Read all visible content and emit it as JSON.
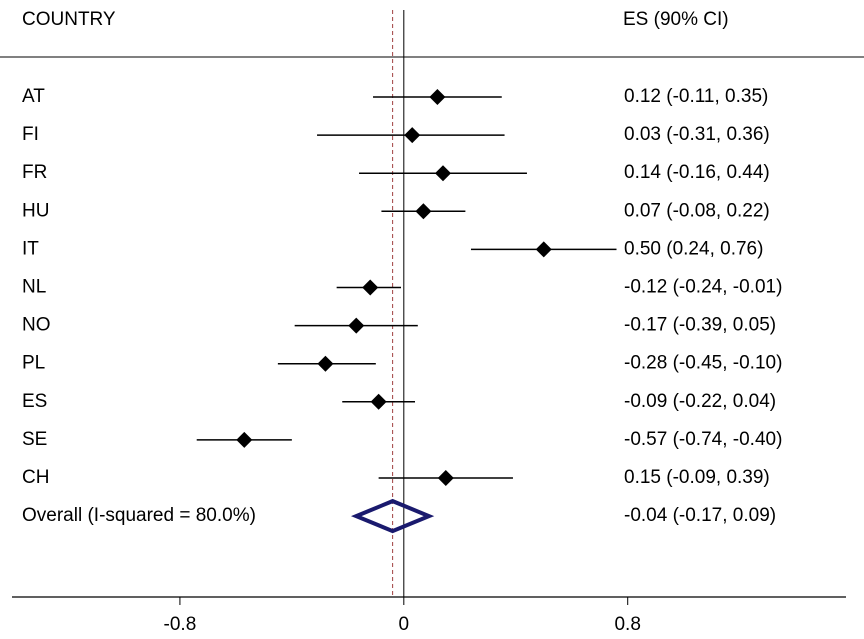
{
  "chart_data": {
    "type": "forest",
    "header_label": "COUNTRY",
    "header_stat": "ES (90% CI)",
    "categories": [
      "AT",
      "FI",
      "FR",
      "HU",
      "IT",
      "NL",
      "NO",
      "PL",
      "ES",
      "SE",
      "CH"
    ],
    "values": [
      0.12,
      0.03,
      0.14,
      0.07,
      0.5,
      -0.12,
      -0.17,
      -0.28,
      -0.09,
      -0.57,
      0.15
    ],
    "lower": [
      -0.11,
      -0.31,
      -0.16,
      -0.08,
      0.24,
      -0.24,
      -0.39,
      -0.45,
      -0.22,
      -0.74,
      -0.09
    ],
    "upper": [
      0.35,
      0.36,
      0.44,
      0.22,
      0.76,
      -0.01,
      0.05,
      -0.1,
      0.04,
      -0.4,
      0.39
    ],
    "value_labels": [
      "0.12 (-0.11, 0.35)",
      "0.03 (-0.31, 0.36)",
      "0.14 (-0.16, 0.44)",
      "0.07 (-0.08, 0.22)",
      "0.50 (0.24, 0.76)",
      "-0.12 (-0.24, -0.01)",
      "-0.17 (-0.39, 0.05)",
      "-0.28 (-0.45, -0.10)",
      "-0.09 (-0.22, 0.04)",
      "-0.57 (-0.74, -0.40)",
      "0.15 (-0.09, 0.39)"
    ],
    "color": "#000000",
    "overall": {
      "label": "Overall  (I-squared = 80.0%)",
      "value": -0.04,
      "lower": -0.17,
      "upper": 0.09,
      "value_label": "-0.04 (-0.17, 0.09)",
      "color": "#1a1a6e",
      "line_color": "#a04040"
    },
    "reference_line": 0,
    "xlim": [
      -1.4,
      1.58
    ],
    "xticks": [
      -0.8,
      0,
      0.8
    ]
  }
}
